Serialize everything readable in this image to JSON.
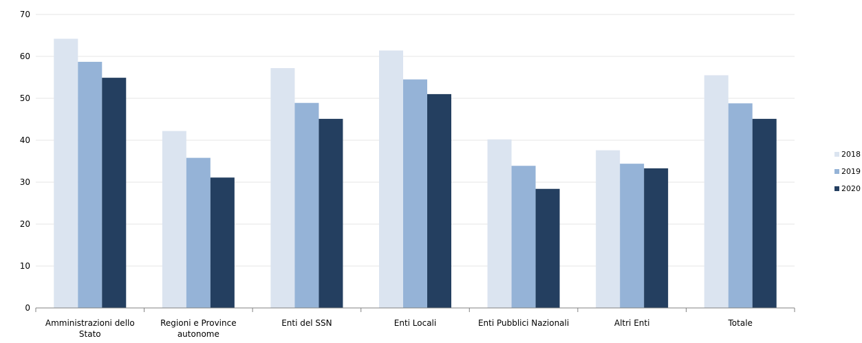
{
  "chart_data": {
    "type": "bar",
    "categories": [
      [
        "Amministrazioni dello",
        "Stato"
      ],
      [
        "Regioni e Province",
        "autonome"
      ],
      [
        "Enti del SSN"
      ],
      [
        "Enti Locali"
      ],
      [
        "Enti  Pubblici Nazionali"
      ],
      [
        "Altri Enti"
      ],
      [
        "Totale"
      ]
    ],
    "series": [
      {
        "name": "2018",
        "color": "#dbe4f0",
        "values": [
          64.2,
          42.2,
          57.2,
          61.4,
          40.2,
          37.6,
          55.5
        ]
      },
      {
        "name": "2019",
        "color": "#95b3d7",
        "values": [
          58.7,
          35.8,
          48.9,
          54.5,
          33.9,
          34.4,
          48.8
        ]
      },
      {
        "name": "2020",
        "color": "#243f60",
        "values": [
          54.9,
          31.1,
          45.1,
          51.0,
          28.4,
          33.3,
          45.1
        ]
      }
    ],
    "ylim": [
      0,
      70
    ],
    "yticks": [
      0,
      10,
      20,
      30,
      40,
      50,
      60,
      70
    ],
    "grid": true,
    "legend": "right"
  }
}
